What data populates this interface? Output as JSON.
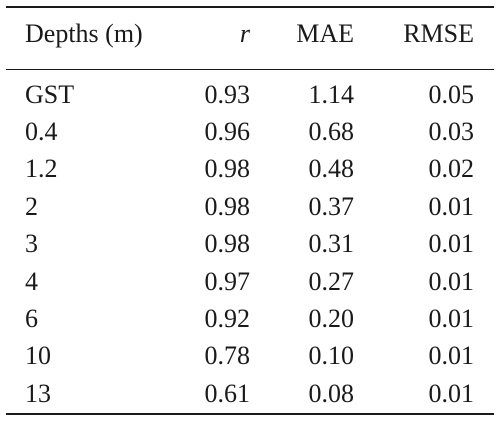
{
  "table": {
    "headers": {
      "depth": "Depths (m)",
      "r": "r",
      "mae": "MAE",
      "rmse": "RMSE"
    },
    "rows": [
      {
        "depth": "GST",
        "r": "0.93",
        "mae": "1.14",
        "rmse": "0.05"
      },
      {
        "depth": "0.4",
        "r": "0.96",
        "mae": "0.68",
        "rmse": "0.03"
      },
      {
        "depth": "1.2",
        "r": "0.98",
        "mae": "0.48",
        "rmse": "0.02"
      },
      {
        "depth": "2",
        "r": "0.98",
        "mae": "0.37",
        "rmse": "0.01"
      },
      {
        "depth": "3",
        "r": "0.98",
        "mae": "0.31",
        "rmse": "0.01"
      },
      {
        "depth": "4",
        "r": "0.97",
        "mae": "0.27",
        "rmse": "0.01"
      },
      {
        "depth": "6",
        "r": "0.92",
        "mae": "0.20",
        "rmse": "0.01"
      },
      {
        "depth": "10",
        "r": "0.78",
        "mae": "0.10",
        "rmse": "0.01"
      },
      {
        "depth": "13",
        "r": "0.61",
        "mae": "0.08",
        "rmse": "0.01"
      }
    ]
  }
}
